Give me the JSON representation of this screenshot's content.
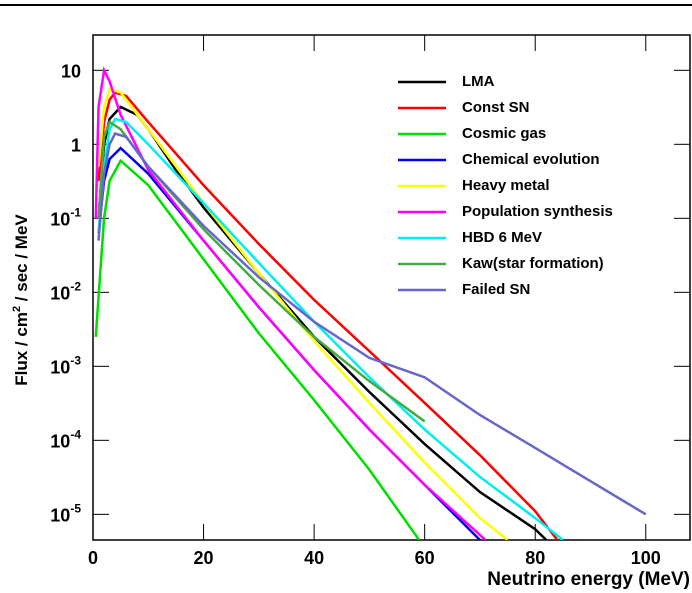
{
  "chart_data": {
    "type": "line",
    "x_label": "Neutrino energy (MeV)",
    "y_label": {
      "before": "Flux / cm",
      "superscript": "2",
      "after": " / sec / MeV"
    },
    "log_y": true,
    "legend": "upper right",
    "xlim": [
      0,
      108
    ],
    "ylim": [
      4.5e-06,
      30
    ],
    "xticks": [
      0,
      20,
      40,
      60,
      80,
      100
    ],
    "yticks": [
      10,
      1,
      {
        "value": 0.1,
        "label": "10",
        "exponent": "-1"
      },
      {
        "value": 0.01,
        "label": "10",
        "exponent": "-2"
      },
      {
        "value": 0.001,
        "label": "10",
        "exponent": "-3"
      },
      {
        "value": 0.0001,
        "label": "10",
        "exponent": "-4"
      },
      {
        "value": 1e-05,
        "label": "10",
        "exponent": "-5"
      }
    ],
    "series": [
      {
        "name": "LMA",
        "color": "#000000",
        "x": [
          1,
          2,
          3,
          5,
          8,
          10,
          15,
          20,
          30,
          40,
          50,
          60,
          70,
          80,
          82
        ],
        "values": [
          0.1,
          1,
          2.2,
          3.2,
          2.5,
          1.6,
          0.45,
          0.14,
          0.018,
          0.0025,
          0.00045,
          8.9e-05,
          2e-05,
          6.3e-06,
          4.5e-06
        ]
      },
      {
        "name": "Const SN",
        "color": "#ff0000",
        "x": [
          1,
          2,
          3,
          4,
          6,
          10,
          20,
          30,
          40,
          50,
          60,
          70,
          80,
          84
        ],
        "values": [
          0.32,
          2,
          4,
          5,
          4.5,
          2,
          0.28,
          0.045,
          0.0079,
          0.0016,
          0.00032,
          6.3e-05,
          1.1e-05,
          4.5e-06
        ]
      },
      {
        "name": "Cosmic gas",
        "color": "#00dd00",
        "x": [
          0.5,
          2,
          3,
          5,
          10,
          20,
          30,
          40,
          50,
          59
        ],
        "values": [
          0.0025,
          0.1,
          0.32,
          0.6,
          0.28,
          0.028,
          0.0028,
          0.00035,
          4e-05,
          4.5e-06
        ]
      },
      {
        "name": "Chemical evolution",
        "color": "#0000ee",
        "x": [
          1,
          2,
          3,
          5,
          10,
          20,
          30,
          40,
          50,
          60,
          70
        ],
        "values": [
          0.063,
          0.32,
          0.63,
          0.89,
          0.4,
          0.05,
          0.0063,
          0.00089,
          0.00014,
          2.5e-05,
          4.5e-06
        ]
      },
      {
        "name": "Heavy metal",
        "color": "#ffff00",
        "x": [
          1,
          2,
          3,
          5,
          10,
          20,
          30,
          40,
          50,
          60,
          70,
          75
        ],
        "values": [
          0.5,
          3.2,
          5.6,
          5,
          1.6,
          0.16,
          0.018,
          0.0022,
          0.00032,
          5e-05,
          8.9e-06,
          4.5e-06
        ]
      },
      {
        "name": "Population synthesis",
        "color": "#ff00ff",
        "x": [
          0.5,
          1,
          2,
          3,
          5,
          10,
          20,
          30,
          40,
          50,
          60,
          71
        ],
        "values": [
          0.1,
          3.2,
          10,
          7.1,
          2.5,
          0.45,
          0.05,
          0.0063,
          0.00089,
          0.00014,
          2.5e-05,
          4.5e-06
        ]
      },
      {
        "name": "HBD 6 MeV",
        "color": "#00eeee",
        "x": [
          1,
          2,
          3,
          4,
          6,
          10,
          20,
          30,
          40,
          50,
          60,
          70,
          80,
          85
        ],
        "values": [
          0.063,
          0.5,
          1.6,
          2.2,
          2,
          1,
          0.16,
          0.025,
          0.004,
          0.00071,
          0.00014,
          3.2e-05,
          8.9e-06,
          4.5e-06
        ]
      },
      {
        "name": "Kaw(star formation)",
        "color": "#44aa44",
        "x": [
          1,
          2,
          3,
          5,
          10,
          20,
          30,
          40,
          50,
          60
        ],
        "values": [
          0.1,
          1.26,
          2,
          1.6,
          0.5,
          0.071,
          0.0126,
          0.0025,
          0.00063,
          0.00018
        ]
      },
      {
        "name": "Failed SN",
        "color": "#6666cc",
        "x": [
          1,
          2,
          3,
          4,
          6,
          10,
          20,
          30,
          40,
          50,
          60,
          70,
          80,
          90,
          100
        ],
        "values": [
          0.05,
          0.4,
          1,
          1.4,
          1.26,
          0.5,
          0.079,
          0.016,
          0.004,
          0.0013,
          0.00071,
          0.00022,
          7.9e-05,
          2.8e-05,
          1e-05
        ]
      }
    ]
  }
}
